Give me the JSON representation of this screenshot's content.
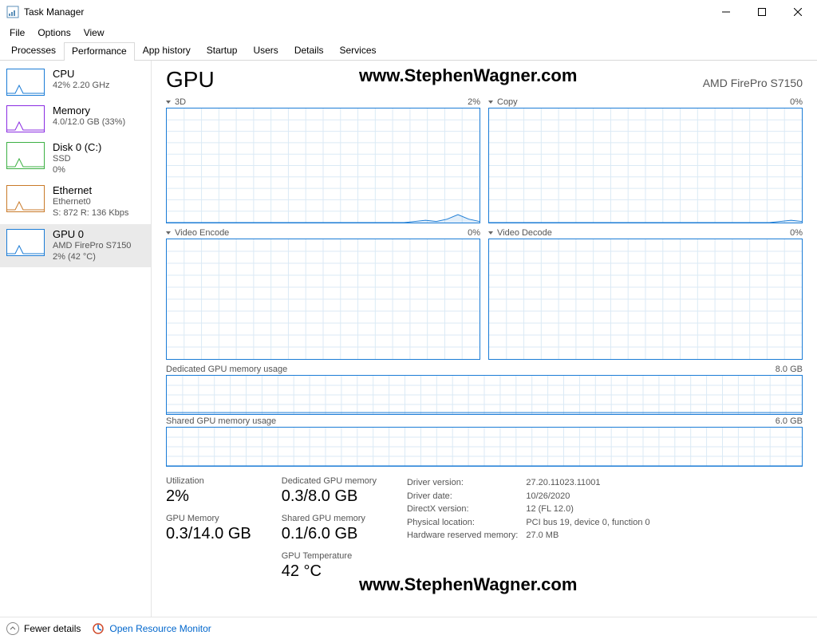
{
  "window": {
    "title": "Task Manager"
  },
  "menu": [
    "File",
    "Options",
    "View"
  ],
  "tabs": [
    "Processes",
    "Performance",
    "App history",
    "Startup",
    "Users",
    "Details",
    "Services"
  ],
  "active_tab": 1,
  "watermark": "www.StephenWagner.com",
  "sidebar": [
    {
      "title": "CPU",
      "subs": [
        "42%  2.20 GHz"
      ],
      "color": "#1b7cd6"
    },
    {
      "title": "Memory",
      "subs": [
        "4.0/12.0 GB (33%)"
      ],
      "color": "#8a2be2"
    },
    {
      "title": "Disk 0 (C:)",
      "subs": [
        "SSD",
        "0%"
      ],
      "color": "#3cb043"
    },
    {
      "title": "Ethernet",
      "subs": [
        "Ethernet0",
        "S: 872 R: 136 Kbps"
      ],
      "color": "#c97a29"
    },
    {
      "title": "GPU 0",
      "subs": [
        "AMD FirePro S7150",
        "2%  (42 °C)"
      ],
      "color": "#1b7cd6",
      "selected": true
    }
  ],
  "gpu": {
    "title": "GPU",
    "name": "AMD FirePro S7150",
    "color": "#1b7cd6",
    "grid_color": "#dbeaf5",
    "charts2x2": [
      {
        "label": "3D",
        "pct": "2%",
        "spark": [
          0,
          0,
          0,
          0,
          0,
          0,
          0,
          0,
          0,
          0,
          0,
          0,
          0,
          0,
          0,
          0,
          0,
          0,
          0,
          0,
          0,
          0,
          0,
          1,
          2,
          1,
          3,
          7,
          3,
          1
        ]
      },
      {
        "label": "Copy",
        "pct": "0%",
        "spark": [
          0,
          0,
          0,
          0,
          0,
          0,
          0,
          0,
          0,
          0,
          0,
          0,
          0,
          0,
          0,
          0,
          0,
          0,
          0,
          0,
          0,
          0,
          0,
          0,
          0,
          0,
          0,
          1,
          2,
          1
        ]
      },
      {
        "label": "Video Encode",
        "pct": "0%",
        "spark": []
      },
      {
        "label": "Video Decode",
        "pct": "0%",
        "spark": []
      }
    ],
    "full_charts": [
      {
        "label": "Dedicated GPU memory usage",
        "right": "8.0 GB",
        "fill": 0.04
      },
      {
        "label": "Shared GPU memory usage",
        "right": "6.0 GB",
        "fill": 0.0
      }
    ],
    "stats": [
      [
        {
          "l": "Utilization",
          "v": "2%"
        },
        {
          "l": "GPU Memory",
          "v": "0.3/14.0 GB"
        }
      ],
      [
        {
          "l": "Dedicated GPU memory",
          "v": "0.3/8.0 GB"
        },
        {
          "l": "Shared GPU memory",
          "v": "0.1/6.0 GB"
        },
        {
          "l": "GPU Temperature",
          "v": "42 °C"
        }
      ]
    ],
    "info": [
      {
        "l": "Driver version:",
        "v": "27.20.11023.11001"
      },
      {
        "l": "Driver date:",
        "v": "10/26/2020"
      },
      {
        "l": "DirectX version:",
        "v": "12 (FL 12.0)"
      },
      {
        "l": "Physical location:",
        "v": "PCI bus 19, device 0, function 0"
      },
      {
        "l": "Hardware reserved memory:",
        "v": "27.0 MB"
      }
    ]
  },
  "footer": {
    "fewer": "Fewer details",
    "resmon": "Open Resource Monitor"
  }
}
